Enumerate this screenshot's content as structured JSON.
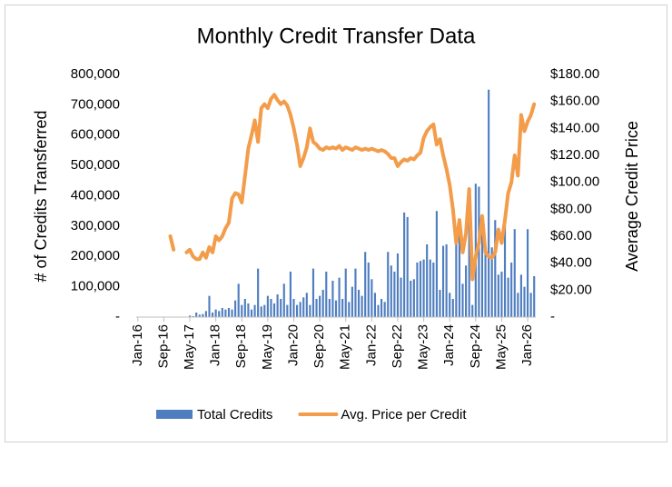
{
  "chart_data": {
    "type": "bar-line",
    "title": "Monthly Credit Transfer Data",
    "y_label": "# of Credits Transferred",
    "y2_label": "Average Credit Price",
    "categories": [
      "Jan-16",
      null,
      null,
      null,
      null,
      null,
      null,
      null,
      "Sep-16",
      null,
      null,
      null,
      null,
      null,
      null,
      null,
      "May-17",
      null,
      null,
      null,
      null,
      null,
      null,
      null,
      "Jan-18",
      null,
      null,
      null,
      null,
      null,
      null,
      null,
      "Sep-18",
      null,
      null,
      null,
      null,
      null,
      null,
      null,
      "May-19",
      null,
      null,
      null,
      null,
      null,
      null,
      null,
      "Jan-20",
      null,
      null,
      null,
      null,
      null,
      null,
      null,
      "Sep-20",
      null,
      null,
      null,
      null,
      null,
      null,
      null,
      "May-21",
      null,
      null,
      null,
      null,
      null,
      null,
      null,
      "Jan-22",
      null,
      null,
      null,
      null,
      null,
      null,
      null,
      "Sep-22",
      null,
      null,
      null,
      null,
      null,
      null,
      null,
      "May-23",
      null,
      null,
      null,
      null,
      null,
      null,
      null,
      "Jan-24",
      null,
      null,
      null,
      null,
      null,
      null,
      null,
      "Sep-24",
      null,
      null,
      null,
      null,
      null,
      null,
      null,
      "May-25",
      null,
      null,
      null,
      null,
      null,
      null,
      null,
      "Jan-26",
      null,
      null
    ],
    "series": [
      {
        "name": "Total Credits",
        "color": "#4f7ec0",
        "kind": "bar",
        "values": [
          0,
          0,
          0,
          0,
          0,
          0,
          0,
          0,
          0,
          0,
          0,
          0,
          0,
          0,
          0,
          0,
          5000,
          3000,
          15000,
          8000,
          10000,
          20000,
          70000,
          15000,
          25000,
          20000,
          30000,
          25000,
          30000,
          25000,
          55000,
          110000,
          40000,
          60000,
          45000,
          25000,
          40000,
          160000,
          35000,
          40000,
          70000,
          60000,
          45000,
          75000,
          60000,
          110000,
          40000,
          150000,
          60000,
          40000,
          50000,
          65000,
          80000,
          40000,
          160000,
          60000,
          70000,
          90000,
          150000,
          60000,
          120000,
          55000,
          130000,
          60000,
          160000,
          50000,
          100000,
          160000,
          90000,
          70000,
          215000,
          180000,
          125000,
          80000,
          40000,
          60000,
          50000,
          215000,
          170000,
          150000,
          210000,
          130000,
          345000,
          330000,
          120000,
          125000,
          180000,
          185000,
          190000,
          240000,
          190000,
          180000,
          350000,
          90000,
          235000,
          240000,
          80000,
          60000,
          280000,
          300000,
          110000,
          170000,
          330000,
          40000,
          440000,
          430000,
          320000,
          220000,
          750000,
          230000,
          320000,
          140000,
          150000,
          320000,
          130000,
          180000,
          290000,
          80000,
          140000,
          100000,
          290000,
          80000,
          135000
        ]
      },
      {
        "name": "Avg. Price per Credit",
        "color": "#f39c4a",
        "kind": "line",
        "axis": "y2",
        "values": [
          null,
          null,
          null,
          null,
          null,
          null,
          null,
          null,
          null,
          null,
          60,
          50,
          null,
          null,
          null,
          48,
          50,
          45,
          43,
          43,
          48,
          44,
          52,
          48,
          60,
          57,
          60,
          66,
          70,
          88,
          92,
          91,
          85,
          105,
          125,
          135,
          146,
          130,
          155,
          158,
          155,
          162,
          165,
          161,
          158,
          160,
          157,
          150,
          140,
          128,
          112,
          118,
          126,
          140,
          130,
          128,
          125,
          124,
          126,
          125,
          126,
          125,
          127,
          124,
          126,
          125,
          124,
          126,
          125,
          124,
          125,
          124,
          125,
          124,
          123,
          124,
          123,
          121,
          118,
          118,
          112,
          115,
          117,
          116,
          118,
          117,
          120,
          122,
          133,
          138,
          141,
          143,
          128,
          132,
          120,
          110,
          98,
          80,
          55,
          72,
          48,
          62,
          95,
          28,
          45,
          55,
          75,
          48,
          45,
          44,
          48,
          65,
          55,
          72,
          92,
          100,
          120,
          105,
          150,
          138,
          145,
          150,
          158
        ]
      }
    ],
    "ylim": [
      0,
      800000
    ],
    "yticks": [
      {
        "value": 0,
        "label": "-"
      },
      {
        "value": 100000,
        "label": "100,000"
      },
      {
        "value": 200000,
        "label": "200,000"
      },
      {
        "value": 300000,
        "label": "300,000"
      },
      {
        "value": 400000,
        "label": "400,000"
      },
      {
        "value": 500000,
        "label": "500,000"
      },
      {
        "value": 600000,
        "label": "600,000"
      },
      {
        "value": 700000,
        "label": "700,000"
      },
      {
        "value": 800000,
        "label": "800,000"
      }
    ],
    "y2lim": [
      0,
      180
    ],
    "y2ticks": [
      {
        "value": 0,
        "label": "-"
      },
      {
        "value": 20,
        "label": "$20.00"
      },
      {
        "value": 40,
        "label": "$40.00"
      },
      {
        "value": 60,
        "label": "$60.00"
      },
      {
        "value": 80,
        "label": "$80.00"
      },
      {
        "value": 100,
        "label": "$100.00"
      },
      {
        "value": 120,
        "label": "$120.00"
      },
      {
        "value": 140,
        "label": "$140.00"
      },
      {
        "value": 160,
        "label": "$160.00"
      },
      {
        "value": 180,
        "label": "$180.00"
      }
    ],
    "legend": "bottom"
  }
}
